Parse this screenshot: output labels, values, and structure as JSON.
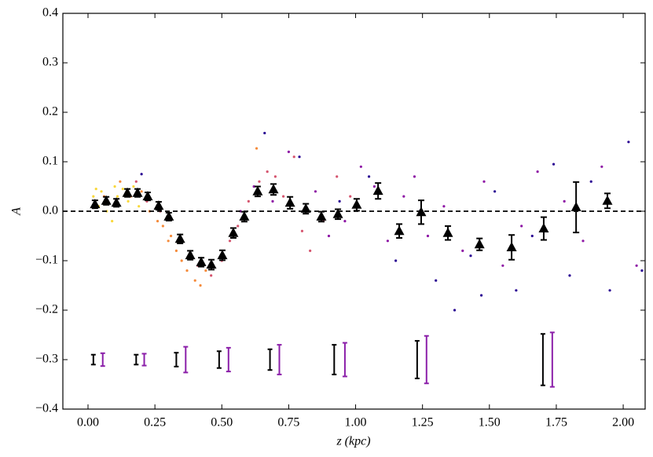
{
  "chart_data": {
    "type": "scatter",
    "xlabel": "z (kpc)",
    "ylabel": "A",
    "xlim": [
      -0.094,
      2.082
    ],
    "ylim": [
      -0.4,
      0.4
    ],
    "xticks": [
      {
        "value": 0,
        "label": "0.00"
      },
      {
        "value": 0.25,
        "label": "0.25"
      },
      {
        "value": 0.5,
        "label": "0.50"
      },
      {
        "value": 0.75,
        "label": "0.75"
      },
      {
        "value": 1,
        "label": "1.00"
      },
      {
        "value": 1.25,
        "label": "1.25"
      },
      {
        "value": 1.5,
        "label": "1.50"
      },
      {
        "value": 1.75,
        "label": "1.75"
      },
      {
        "value": 2,
        "label": "2.00"
      }
    ],
    "yticks": [
      {
        "value": -0.4,
        "label": "−0.4"
      },
      {
        "value": -0.3,
        "label": "−0.3"
      },
      {
        "value": -0.2,
        "label": "−0.2"
      },
      {
        "value": -0.1,
        "label": "−0.1"
      },
      {
        "value": 0,
        "label": "0.0"
      },
      0.1,
      0.2,
      0.3,
      0.4
    ],
    "hline": 0,
    "dots": {
      "x": [
        0.02,
        0.04,
        0.05,
        0.07,
        0.09,
        0.11,
        0.13,
        0.15,
        0.17,
        0.19,
        0.03,
        0.1,
        0.06,
        0.12,
        0.16,
        0.2,
        0.23,
        0.26,
        0.28,
        0.31,
        0.33,
        0.35,
        0.37,
        0.4,
        0.42,
        0.44,
        0.3,
        0.38,
        0.63,
        0.18,
        0.22,
        0.27,
        0.34,
        0.41,
        0.46,
        0.5,
        0.53,
        0.56,
        0.6,
        0.64,
        0.67,
        0.7,
        0.73,
        0.77,
        0.8,
        0.83,
        0.88,
        0.93,
        0.98,
        0.57,
        0.62,
        0.69,
        0.75,
        0.85,
        0.9,
        0.96,
        1.02,
        1.07,
        1.12,
        1.18,
        1.22,
        1.27,
        1.33,
        1.4,
        1.48,
        1.55,
        1.62,
        1.68,
        1.78,
        1.85,
        1.92,
        2.05,
        0.2,
        0.66,
        0.79,
        0.94,
        1.05,
        1.15,
        1.24,
        1.3,
        1.37,
        1.43,
        1.47,
        1.52,
        1.6,
        1.66,
        1.74,
        1.8,
        1.88,
        1.95,
        2.02,
        2.07
      ],
      "y": [
        0.03,
        0.01,
        0.04,
        0.0,
        -0.02,
        0.03,
        0.045,
        0.02,
        0.05,
        0.01,
        0.045,
        0.05,
        0.03,
        0.06,
        0.03,
        0.04,
        0.0,
        -0.02,
        -0.03,
        -0.05,
        -0.08,
        -0.1,
        -0.12,
        -0.14,
        -0.15,
        -0.12,
        -0.06,
        -0.09,
        0.127,
        0.06,
        0.02,
        0.0,
        -0.06,
        -0.11,
        -0.13,
        -0.1,
        -0.06,
        -0.03,
        0.02,
        0.06,
        0.08,
        0.07,
        0.03,
        0.11,
        -0.04,
        -0.08,
        -0.02,
        0.07,
        0.03,
        0.0,
        0.05,
        0.02,
        0.12,
        0.04,
        -0.05,
        -0.02,
        0.09,
        0.05,
        -0.06,
        0.03,
        0.07,
        -0.05,
        0.01,
        -0.08,
        0.06,
        -0.11,
        -0.03,
        0.08,
        0.02,
        -0.06,
        0.09,
        -0.11,
        0.075,
        0.158,
        0.11,
        0.02,
        0.07,
        -0.1,
        0.0,
        -0.14,
        -0.2,
        -0.09,
        -0.17,
        0.04,
        -0.16,
        -0.05,
        0.095,
        -0.13,
        0.06,
        -0.16,
        0.14,
        -0.12
      ],
      "colors": [
        "#f9d83a",
        "#f9d83a",
        "#f9d83a",
        "#f9d83a",
        "#f9d83a",
        "#f9d83a",
        "#f9d83a",
        "#f9d83a",
        "#f9d83a",
        "#f9d83a",
        "#f9d83a",
        "#f9d83a",
        "#f58b3b",
        "#f58b3b",
        "#f58b3b",
        "#f58b3b",
        "#f58b3b",
        "#f58b3b",
        "#f58b3b",
        "#f58b3b",
        "#f58b3b",
        "#f58b3b",
        "#f58b3b",
        "#f58b3b",
        "#f58b3b",
        "#f58b3b",
        "#f58b3b",
        "#f58b3b",
        "#f58b3b",
        "#d5546e",
        "#d5546e",
        "#d5546e",
        "#d5546e",
        "#d5546e",
        "#d5546e",
        "#d5546e",
        "#d5546e",
        "#d5546e",
        "#d5546e",
        "#d5546e",
        "#d5546e",
        "#d5546e",
        "#d5546e",
        "#d5546e",
        "#d5546e",
        "#d5546e",
        "#d5546e",
        "#d5546e",
        "#d5546e",
        "#8e17a5",
        "#8e17a5",
        "#8e17a5",
        "#8e17a5",
        "#8e17a5",
        "#8e17a5",
        "#8e17a5",
        "#8e17a5",
        "#8e17a5",
        "#8e17a5",
        "#8e17a5",
        "#8e17a5",
        "#8e17a5",
        "#8e17a5",
        "#8e17a5",
        "#8e17a5",
        "#8e17a5",
        "#8e17a5",
        "#8e17a5",
        "#8e17a5",
        "#8e17a5",
        "#8e17a5",
        "#8e17a5",
        "#2a0593",
        "#2a0593",
        "#2a0593",
        "#2a0593",
        "#2a0593",
        "#2a0593",
        "#2a0593",
        "#2a0593",
        "#2a0593",
        "#2a0593",
        "#2a0593",
        "#2a0593",
        "#2a0593",
        "#2a0593",
        "#2a0593",
        "#2a0593",
        "#2a0593",
        "#2a0593",
        "#2a0593",
        "#2a0593"
      ]
    },
    "binned": {
      "color": "#000000",
      "x": [
        0.026,
        0.068,
        0.106,
        0.147,
        0.185,
        0.223,
        0.264,
        0.302,
        0.344,
        0.382,
        0.423,
        0.461,
        0.502,
        0.543,
        0.584,
        0.634,
        0.693,
        0.755,
        0.814,
        0.872,
        0.934,
        1.004,
        1.084,
        1.163,
        1.245,
        1.345,
        1.463,
        1.583,
        1.703,
        1.824,
        1.941
      ],
      "y": [
        0.014,
        0.021,
        0.017,
        0.037,
        0.037,
        0.03,
        0.011,
        -0.011,
        -0.056,
        -0.089,
        -0.103,
        -0.108,
        -0.089,
        -0.044,
        -0.011,
        0.04,
        0.044,
        0.017,
        0.005,
        -0.011,
        -0.006,
        0.013,
        0.041,
        -0.04,
        -0.002,
        -0.044,
        -0.067,
        -0.073,
        -0.035,
        0.008,
        0.021
      ],
      "err": [
        0.008,
        0.008,
        0.008,
        0.008,
        0.008,
        0.008,
        0.008,
        0.008,
        0.009,
        0.009,
        0.009,
        0.01,
        0.01,
        0.01,
        0.01,
        0.01,
        0.011,
        0.012,
        0.01,
        0.01,
        0.01,
        0.012,
        0.016,
        0.014,
        0.024,
        0.014,
        0.012,
        0.025,
        0.023,
        0.051,
        0.015
      ]
    },
    "reference_errors": [
      {
        "color": "#000000",
        "x": [
          0.02,
          0.18,
          0.33,
          0.49,
          0.68,
          0.92,
          1.23,
          1.7
        ],
        "y": [
          -0.3,
          -0.3,
          -0.3,
          -0.3,
          -0.3,
          -0.3,
          -0.3,
          -0.3
        ],
        "err": [
          0.01,
          0.01,
          0.014,
          0.017,
          0.021,
          0.03,
          0.038,
          0.052
        ]
      },
      {
        "color": "#8b1fa9",
        "x": [
          0.055,
          0.21,
          0.365,
          0.525,
          0.715,
          0.96,
          1.265,
          1.735
        ],
        "y": [
          -0.3,
          -0.3,
          -0.3,
          -0.3,
          -0.3,
          -0.3,
          -0.3,
          -0.3
        ],
        "err": [
          0.013,
          0.012,
          0.026,
          0.024,
          0.03,
          0.034,
          0.048,
          0.055
        ]
      }
    ]
  }
}
